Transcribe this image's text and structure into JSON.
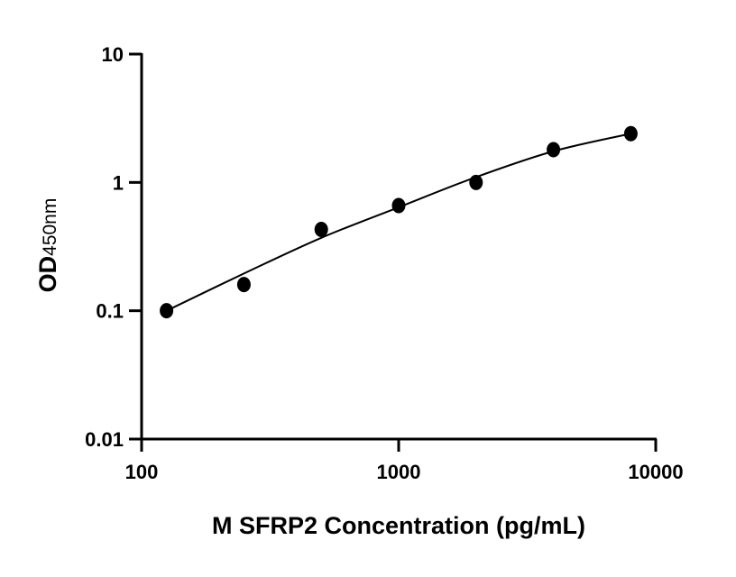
{
  "chart_data": {
    "type": "scatter",
    "xlabel": "M SFRP2 Concentration (pg/mL)",
    "ylabel": "OD",
    "ylabel_subscript": "450nm",
    "x_scale": "log",
    "y_scale": "log",
    "xlim": [
      100,
      10000
    ],
    "ylim": [
      0.01,
      10
    ],
    "x_ticks": [
      "100",
      "1000",
      "10000"
    ],
    "y_ticks": [
      "0.01",
      "0.1",
      "1",
      "10"
    ],
    "grid": false,
    "points": [
      {
        "x": 125,
        "y": 0.1
      },
      {
        "x": 250,
        "y": 0.16
      },
      {
        "x": 500,
        "y": 0.43
      },
      {
        "x": 1000,
        "y": 0.66
      },
      {
        "x": 2000,
        "y": 1.0
      },
      {
        "x": 4000,
        "y": 1.8
      },
      {
        "x": 8000,
        "y": 2.4
      }
    ],
    "fit_curve": [
      {
        "x": 125,
        "y": 0.1
      },
      {
        "x": 250,
        "y": 0.195
      },
      {
        "x": 500,
        "y": 0.37
      },
      {
        "x": 1000,
        "y": 0.64
      },
      {
        "x": 2000,
        "y": 1.1
      },
      {
        "x": 4000,
        "y": 1.75
      },
      {
        "x": 8000,
        "y": 2.4
      }
    ],
    "colors": {
      "points": "#000000",
      "curve": "#000000",
      "axes": "#000000"
    }
  }
}
